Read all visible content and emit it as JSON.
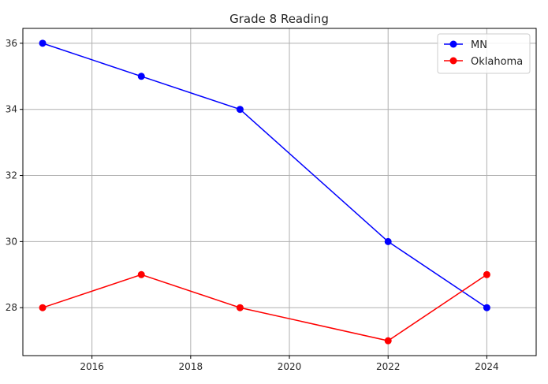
{
  "chart_data": {
    "type": "line",
    "title": "Grade 8 Reading",
    "xlabel": "",
    "ylabel": "",
    "x": [
      2015,
      2017,
      2019,
      2022,
      2024
    ],
    "xticks": [
      2016,
      2018,
      2020,
      2022,
      2024
    ],
    "yticks": [
      28,
      30,
      32,
      34,
      36
    ],
    "xlim": [
      2014.6,
      2025.0
    ],
    "ylim": [
      26.55,
      36.45
    ],
    "grid": true,
    "legend_position": "top-right",
    "series": [
      {
        "name": "MN",
        "color": "#0000ff",
        "values": [
          36,
          35,
          34,
          30,
          28
        ]
      },
      {
        "name": "Oklahoma",
        "color": "#ff0000",
        "values": [
          28,
          29,
          28,
          27,
          29
        ]
      }
    ]
  }
}
